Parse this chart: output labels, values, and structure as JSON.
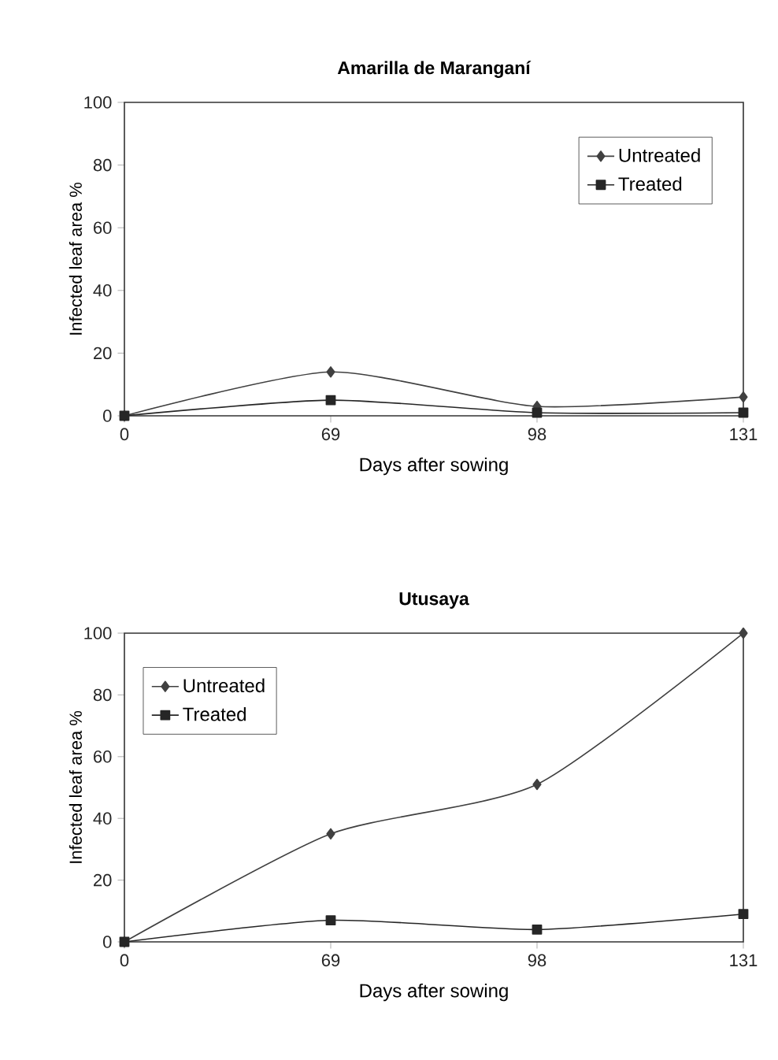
{
  "chart_data": [
    {
      "type": "line",
      "title": "Amarilla de Maranganí",
      "xlabel": "Days after sowing",
      "ylabel": "Infected leaf area %",
      "categories": [
        "0",
        "69",
        "98",
        "131"
      ],
      "series": [
        {
          "name": "Untreated",
          "color": "#404040",
          "marker": "diamond",
          "values": [
            0,
            14,
            3,
            6
          ]
        },
        {
          "name": "Treated",
          "color": "#262626",
          "marker": "square",
          "values": [
            0,
            5,
            1,
            1
          ]
        }
      ],
      "ylim": [
        0,
        100
      ],
      "yticks": [
        0,
        20,
        40,
        60,
        80,
        100
      ],
      "legend": "top right",
      "grid": false
    },
    {
      "type": "line",
      "title": "Utusaya",
      "xlabel": "Days after sowing",
      "ylabel": "Infected leaf area %",
      "categories": [
        "0",
        "69",
        "98",
        "131"
      ],
      "series": [
        {
          "name": "Untreated",
          "color": "#404040",
          "marker": "diamond",
          "values": [
            0,
            35,
            51,
            100
          ]
        },
        {
          "name": "Treated",
          "color": "#262626",
          "marker": "square",
          "values": [
            0,
            7,
            4,
            9
          ]
        }
      ],
      "ylim": [
        0,
        100
      ],
      "yticks": [
        0,
        20,
        40,
        60,
        80,
        100
      ],
      "legend": "top left",
      "grid": false
    }
  ]
}
